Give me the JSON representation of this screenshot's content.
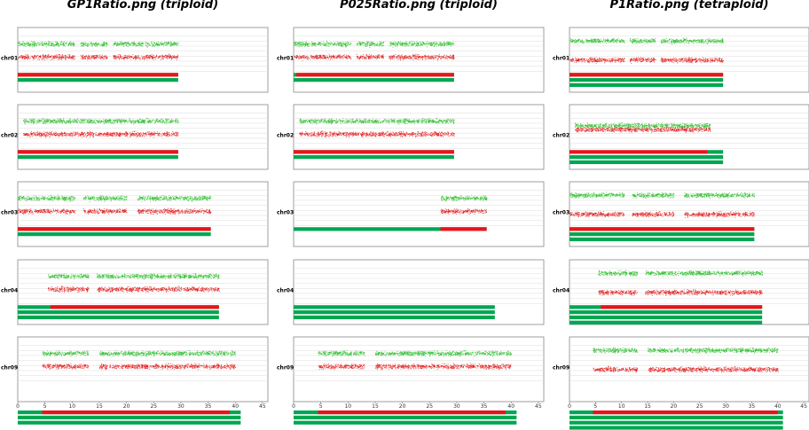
{
  "chart_data": [
    {
      "type": "scatter",
      "title": "GP1Ratio.png (triploid)",
      "chromosomes": [
        {
          "name": "chr01",
          "x_range": [
            0,
            29.5
          ],
          "data_segments": [
            [
              0,
              10.5
            ],
            [
              11.5,
              16.5
            ],
            [
              17.5,
              29.5
            ]
          ],
          "green_levels": [
            0.33
          ],
          "red_levels": [
            0.67
          ],
          "red_bar": [
            0,
            29.5
          ],
          "green_bars": [
            [
              0,
              29.5
            ],
            [
              0,
              29.5
            ]
          ]
        },
        {
          "name": "chr02",
          "x_range": [
            0,
            29.5
          ],
          "data_segments": [
            [
              1,
              13
            ],
            [
              13,
              29.5
            ]
          ],
          "green_levels": [
            0.33
          ],
          "red_levels": [
            0.67
          ],
          "red_bar": [
            0,
            29.5
          ],
          "green_bars": [
            [
              0,
              29.5
            ],
            [
              0,
              29.5
            ]
          ]
        },
        {
          "name": "chr03",
          "x_range": [
            0,
            35.5
          ],
          "data_segments": [
            [
              0,
              10.5
            ],
            [
              12,
              20
            ],
            [
              22,
              35.5
            ]
          ],
          "green_levels": [
            0.33
          ],
          "red_levels": [
            0.67
          ],
          "red_bar": [
            0,
            35.5
          ],
          "green_bars": [
            [
              0,
              35.5
            ],
            [
              0,
              35.5
            ]
          ]
        },
        {
          "name": "chr04",
          "x_range": [
            0,
            37
          ],
          "data_segments": [
            [
              5.5,
              13
            ],
            [
              14.5,
              37
            ]
          ],
          "green_levels": [
            0.33
          ],
          "red_levels": [
            0.67
          ],
          "red_bar": [
            6,
            37
          ],
          "green_bars": [
            [
              0,
              37
            ],
            [
              0,
              37
            ],
            [
              0,
              37
            ]
          ]
        },
        {
          "name": "chr09",
          "x_range": [
            0,
            41
          ],
          "data_segments": [
            [
              4.5,
              13
            ],
            [
              15,
              40
            ]
          ],
          "green_levels": [
            0.33
          ],
          "red_levels": [
            0.67
          ],
          "red_bar": [
            4.5,
            39
          ],
          "green_bars": [
            [
              0,
              41
            ],
            [
              0,
              41
            ],
            [
              0,
              41
            ]
          ]
        }
      ],
      "x_ticks": [
        0,
        5,
        10,
        15,
        20,
        25,
        30,
        35,
        40,
        45
      ],
      "xlim": [
        0,
        46
      ]
    },
    {
      "type": "scatter",
      "title": "P025Ratio.png (triploid)",
      "chromosomes": [
        {
          "name": "chr01",
          "x_range": [
            0,
            29.5
          ],
          "data_segments": [
            [
              0,
              10.5
            ],
            [
              11.5,
              16.5
            ],
            [
              17.5,
              29.5
            ]
          ],
          "green_levels": [
            0.33
          ],
          "red_levels": [
            0.67
          ],
          "red_bar": [
            0.5,
            29.5
          ],
          "green_bars": [
            [
              0,
              29.5
            ],
            [
              0,
              29.5
            ]
          ]
        },
        {
          "name": "chr02",
          "x_range": [
            0,
            29.5
          ],
          "data_segments": [
            [
              1,
              13
            ],
            [
              13,
              29.5
            ]
          ],
          "green_levels": [
            0.33
          ],
          "red_levels": [
            0.67
          ],
          "red_bar": [
            0,
            29.5
          ],
          "green_bars": [
            [
              0,
              29.5
            ],
            [
              0,
              29.5
            ]
          ]
        },
        {
          "name": "chr03",
          "x_range": [
            0,
            35.5
          ],
          "data_segments": [
            [
              27,
              35.5
            ]
          ],
          "green_levels": [
            0.33
          ],
          "red_levels": [
            0.67
          ],
          "red_bar": [
            27,
            35.5
          ],
          "green_bars": [
            [
              0,
              35.5
            ]
          ]
        },
        {
          "name": "chr04",
          "x_range": [
            0,
            37
          ],
          "data_segments": [],
          "green_levels": [],
          "red_levels": [],
          "red_bar": null,
          "green_bars": [
            [
              0,
              37
            ],
            [
              0,
              37
            ],
            [
              0,
              37
            ]
          ]
        },
        {
          "name": "chr09",
          "x_range": [
            0,
            41
          ],
          "data_segments": [
            [
              4.5,
              13
            ],
            [
              15,
              40
            ]
          ],
          "green_levels": [
            0.33
          ],
          "red_levels": [
            0.67
          ],
          "red_bar": [
            4.5,
            39
          ],
          "green_bars": [
            [
              0,
              41
            ],
            [
              0,
              41
            ],
            [
              0,
              41
            ]
          ]
        }
      ],
      "x_ticks": [
        0,
        5,
        10,
        15,
        20,
        25,
        30,
        35,
        40,
        45
      ],
      "xlim": [
        0,
        46
      ]
    },
    {
      "type": "scatter",
      "title": "P1Ratio.png (tetraploid)",
      "chromosomes": [
        {
          "name": "chr01",
          "x_range": [
            0,
            29.5
          ],
          "data_segments": [
            [
              0,
              10.5
            ],
            [
              11.5,
              16.5
            ],
            [
              17.5,
              29.5
            ]
          ],
          "green_levels": [
            0.25
          ],
          "red_levels": [
            0.75
          ],
          "red_bar": [
            0,
            29.5
          ],
          "green_bars": [
            [
              0,
              29.5
            ],
            [
              0,
              29.5
            ],
            [
              0,
              29.5
            ]
          ]
        },
        {
          "name": "chr02",
          "x_range": [
            0,
            29.5
          ],
          "data_segments": [
            [
              1,
              27
            ]
          ],
          "green_levels": [
            0.45
          ],
          "red_levels": [
            0.55
          ],
          "red_bar": [
            0,
            26.5
          ],
          "green_bars": [
            [
              26.5,
              29.5
            ],
            [
              0,
              29.5
            ],
            [
              0,
              29.5
            ]
          ]
        },
        {
          "name": "chr03",
          "x_range": [
            0,
            35.5
          ],
          "data_segments": [
            [
              0,
              10.5
            ],
            [
              12,
              20
            ],
            [
              22,
              35.5
            ]
          ],
          "green_levels": [
            0.25
          ],
          "red_levels": [
            0.75
          ],
          "red_bar": [
            0,
            35.5
          ],
          "green_bars": [
            [
              0,
              35.5
            ],
            [
              0,
              35.5
            ],
            [
              0,
              35.5
            ]
          ]
        },
        {
          "name": "chr04",
          "x_range": [
            0,
            37
          ],
          "data_segments": [
            [
              5.5,
              13
            ],
            [
              14.5,
              37
            ]
          ],
          "green_levels": [
            0.25
          ],
          "red_levels": [
            0.75
          ],
          "red_bar": [
            6,
            37
          ],
          "green_bars": [
            [
              0,
              37
            ],
            [
              0,
              37
            ],
            [
              0,
              37
            ],
            [
              0,
              37
            ]
          ]
        },
        {
          "name": "chr09",
          "x_range": [
            0,
            41
          ],
          "data_segments": [
            [
              4.5,
              13
            ],
            [
              15,
              40
            ]
          ],
          "green_levels": [
            0.25
          ],
          "red_levels": [
            0.75
          ],
          "red_bar": [
            4.5,
            40
          ],
          "green_bars": [
            [
              0,
              41
            ],
            [
              0,
              41
            ],
            [
              0,
              41
            ],
            [
              0,
              41
            ]
          ]
        }
      ],
      "x_ticks": [
        0,
        5,
        10,
        15,
        20,
        25,
        30,
        35,
        40,
        45
      ],
      "xlim": [
        0,
        46
      ]
    }
  ],
  "colors": {
    "green": "#00a651",
    "red": "#e8141b",
    "green_dots": "#22bb22",
    "red_dots": "#e01010"
  }
}
